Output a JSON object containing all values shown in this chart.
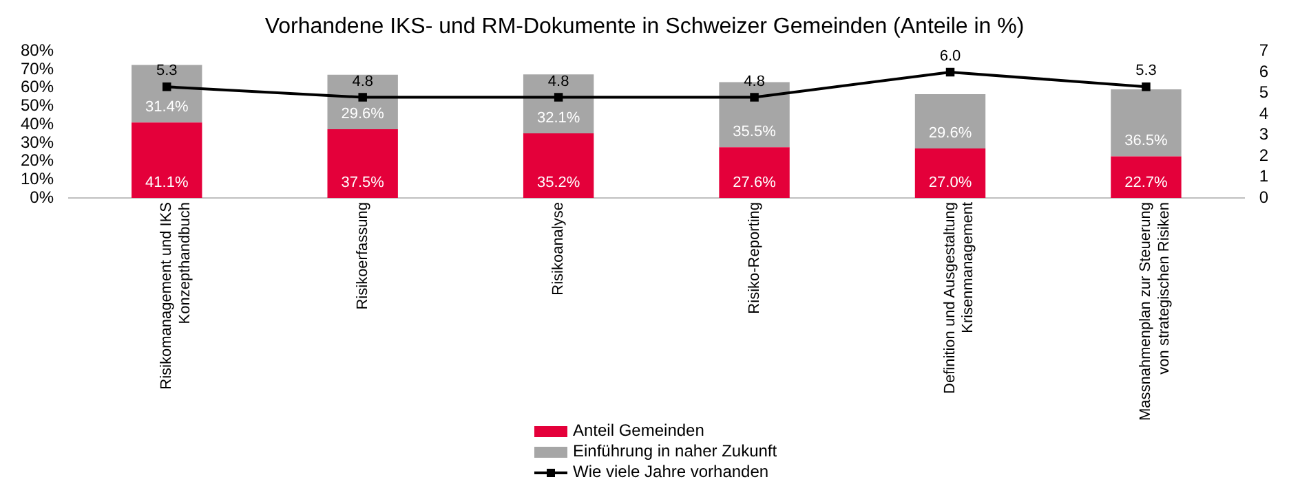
{
  "chart_data": {
    "type": "bar",
    "title": "Vorhandene IKS- und RM-Dokumente in Schweizer Gemeinden (Anteile in %)",
    "categories": [
      "Risikomanagement und IKS Konzepthandbuch",
      "Risikoerfassung",
      "Risikoanalyse",
      "Risiko-Reporting",
      "Definition und Ausgestaltung Krisenmanagement",
      "Massnahmenplan zur Steuerung von strategischen Risiken"
    ],
    "stacked": true,
    "series": [
      {
        "name": "Anteil Gemeinden",
        "color": "#e4003a",
        "values": [
          41.1,
          37.5,
          35.2,
          27.6,
          27.0,
          22.7
        ],
        "value_labels": [
          "41.1%",
          "37.5%",
          "35.2%",
          "27.6%",
          "27.0%",
          "22.7%"
        ]
      },
      {
        "name": "Einführung in naher Zukunft",
        "color": "#a6a6a6",
        "values": [
          31.4,
          29.6,
          32.1,
          35.5,
          29.6,
          36.5
        ],
        "value_labels": [
          "31.4%",
          "29.6%",
          "32.1%",
          "35.5%",
          "29.6%",
          "36.5%"
        ]
      },
      {
        "name": "Wie viele Jahre vorhanden",
        "type": "line",
        "axis": "y2",
        "color": "#000000",
        "values": [
          5.3,
          4.8,
          4.8,
          4.8,
          6.0,
          5.3
        ],
        "value_labels": [
          "5.3",
          "4.8",
          "4.8",
          "4.8",
          "6.0",
          "5.3"
        ]
      }
    ],
    "ylim": [
      0,
      80
    ],
    "yticks": [
      {
        "value": 0,
        "label": "0%"
      },
      {
        "value": 10,
        "label": "10%"
      },
      {
        "value": 20,
        "label": "20%"
      },
      {
        "value": 30,
        "label": "30%"
      },
      {
        "value": 40,
        "label": "40%"
      },
      {
        "value": 50,
        "label": "50%"
      },
      {
        "value": 60,
        "label": "60%"
      },
      {
        "value": 70,
        "label": "70%"
      },
      {
        "value": 80,
        "label": "80%"
      }
    ],
    "y2lim": [
      0,
      7
    ],
    "y2ticks": [
      0,
      1,
      2,
      3,
      4,
      5,
      6,
      7
    ],
    "grid": false,
    "legend": "bottom",
    "marker": "square",
    "line_style": "solid"
  }
}
